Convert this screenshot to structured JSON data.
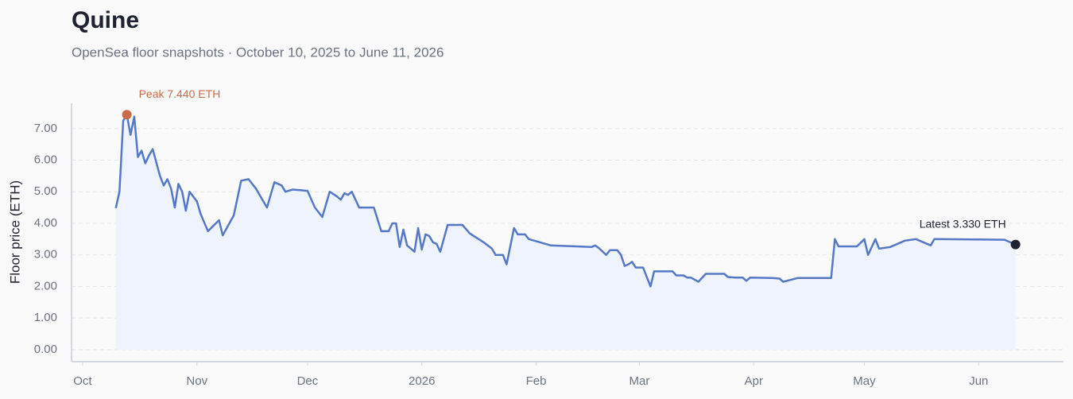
{
  "chart_data": {
    "type": "line",
    "title": "Quine",
    "subtitle": "OpenSea floor snapshots · October 10, 2025 to June 11, 2026",
    "y_label": "Floor price (ETH)",
    "color": "#5579c6",
    "area_color": "#eef3fd",
    "grid": true,
    "x": [
      "2025-10-10",
      "2025-10-11",
      "2025-10-12",
      "2025-10-13",
      "2025-10-14",
      "2025-10-15",
      "2025-10-16",
      "2025-10-17",
      "2025-10-18",
      "2025-10-19",
      "2025-10-20",
      "2025-10-22",
      "2025-10-23",
      "2025-10-24",
      "2025-10-25",
      "2025-10-26",
      "2025-10-27",
      "2025-10-28",
      "2025-10-29",
      "2025-10-30",
      "2025-11-01",
      "2025-11-02",
      "2025-11-04",
      "2025-11-07",
      "2025-11-08",
      "2025-11-11",
      "2025-11-13",
      "2025-11-15",
      "2025-11-17",
      "2025-11-20",
      "2025-11-22",
      "2025-11-24",
      "2025-11-25",
      "2025-11-27",
      "2025-12-01",
      "2025-12-03",
      "2025-12-05",
      "2025-12-07",
      "2025-12-09",
      "2025-12-10",
      "2025-12-11",
      "2025-12-12",
      "2025-12-13",
      "2025-12-15",
      "2025-12-19",
      "2025-12-21",
      "2025-12-23",
      "2025-12-24",
      "2025-12-25",
      "2025-12-26",
      "2025-12-27",
      "2025-12-28",
      "2025-12-30",
      "2025-12-31",
      "2026-01-01",
      "2026-01-02",
      "2026-01-03",
      "2026-01-04",
      "2026-01-05",
      "2026-01-06",
      "2026-01-08",
      "2026-01-12",
      "2026-01-14",
      "2026-01-18",
      "2026-01-20",
      "2026-01-21",
      "2026-01-23",
      "2026-01-24",
      "2026-01-26",
      "2026-01-27",
      "2026-01-29",
      "2026-01-30",
      "2026-02-05",
      "2026-02-16",
      "2026-02-17",
      "2026-02-18",
      "2026-02-20",
      "2026-02-21",
      "2026-02-23",
      "2026-02-24",
      "2026-02-25",
      "2026-02-26",
      "2026-02-27",
      "2026-02-28",
      "2026-03-02",
      "2026-03-04",
      "2026-03-05",
      "2026-03-10",
      "2026-03-11",
      "2026-03-13",
      "2026-03-14",
      "2026-03-15",
      "2026-03-17",
      "2026-03-19",
      "2026-03-24",
      "2026-03-25",
      "2026-03-27",
      "2026-03-29",
      "2026-03-30",
      "2026-03-31",
      "2026-04-06",
      "2026-04-08",
      "2026-04-09",
      "2026-04-13",
      "2026-04-22",
      "2026-04-23",
      "2026-04-24",
      "2026-04-29",
      "2026-05-01",
      "2026-05-02",
      "2026-05-04",
      "2026-05-05",
      "2026-05-08",
      "2026-05-12",
      "2026-05-15",
      "2026-05-19",
      "2026-05-20",
      "2026-06-08",
      "2026-06-11"
    ],
    "values": [
      4.48,
      5.0,
      7.25,
      7.44,
      6.8,
      7.38,
      6.1,
      6.3,
      5.9,
      6.15,
      6.35,
      5.5,
      5.2,
      5.4,
      5.1,
      4.5,
      5.25,
      5.0,
      4.4,
      5.0,
      4.7,
      4.3,
      3.75,
      4.1,
      3.62,
      4.25,
      5.35,
      5.4,
      5.1,
      4.5,
      5.3,
      5.2,
      5.0,
      5.07,
      5.03,
      4.5,
      4.2,
      5.0,
      4.85,
      4.75,
      4.95,
      4.9,
      5.0,
      4.5,
      4.5,
      3.75,
      3.75,
      4.0,
      4.0,
      3.25,
      3.8,
      3.3,
      3.1,
      3.85,
      3.17,
      3.65,
      3.6,
      3.4,
      3.35,
      3.1,
      3.95,
      3.95,
      3.68,
      3.38,
      3.2,
      3.0,
      3.0,
      2.7,
      3.85,
      3.65,
      3.65,
      3.5,
      3.3,
      3.25,
      3.3,
      3.22,
      3.0,
      3.15,
      3.15,
      3.0,
      2.65,
      2.7,
      2.78,
      2.6,
      2.6,
      2.0,
      2.48,
      2.48,
      2.35,
      2.35,
      2.28,
      2.28,
      2.15,
      2.4,
      2.4,
      2.3,
      2.28,
      2.28,
      2.18,
      2.28,
      2.27,
      2.25,
      2.15,
      2.27,
      2.27,
      3.5,
      3.27,
      3.27,
      3.5,
      3.0,
      3.5,
      3.2,
      3.25,
      3.45,
      3.5,
      3.3,
      3.5,
      3.48,
      3.33
    ],
    "xlim": [
      "2025-09-28",
      "2026-06-24"
    ],
    "xticks": [
      {
        "value": "2025-10-01",
        "label": "Oct"
      },
      {
        "value": "2025-11-01",
        "label": "Nov"
      },
      {
        "value": "2025-12-01",
        "label": "Dec"
      },
      {
        "value": "2026-01-01",
        "label": "2026"
      },
      {
        "value": "2026-02-01",
        "label": "Feb"
      },
      {
        "value": "2026-03-01",
        "label": "Mar"
      },
      {
        "value": "2026-04-01",
        "label": "Apr"
      },
      {
        "value": "2026-05-01",
        "label": "May"
      },
      {
        "value": "2026-06-01",
        "label": "Jun"
      }
    ],
    "ylim": [
      -0.38,
      7.8
    ],
    "yticks": [
      {
        "value": 0,
        "label": "0.00"
      },
      {
        "value": 1,
        "label": "1.00"
      },
      {
        "value": 2,
        "label": "2.00"
      },
      {
        "value": 3,
        "label": "3.00"
      },
      {
        "value": 4,
        "label": "4.00"
      },
      {
        "value": 5,
        "label": "5.00"
      },
      {
        "value": 6,
        "label": "6.00"
      },
      {
        "value": 7,
        "label": "7.00"
      }
    ],
    "annotations": [
      {
        "text": "Peak 7.440 ETH",
        "x": "2025-10-13",
        "y": 7.44,
        "color": "#cc6b47"
      },
      {
        "text": "Latest 3.330 ETH",
        "x": "2026-06-11",
        "y": 3.33,
        "color": "#1f2230"
      }
    ]
  }
}
